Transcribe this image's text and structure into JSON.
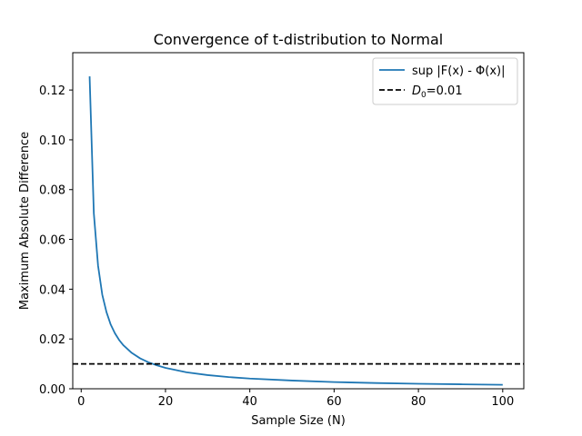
{
  "chart_data": {
    "type": "line",
    "title": "Convergence of t-distribution to Normal",
    "xlabel": "Sample Size (N)",
    "ylabel": "Maximum Absolute Difference",
    "xlim": [
      -2,
      105
    ],
    "ylim": [
      0,
      0.135
    ],
    "xticks": [
      0,
      20,
      40,
      60,
      80,
      100
    ],
    "yticks": [
      0.0,
      0.02,
      0.04,
      0.06,
      0.08,
      0.1,
      0.12
    ],
    "xtick_labels": [
      "0",
      "20",
      "40",
      "60",
      "80",
      "100"
    ],
    "ytick_labels": [
      "0.00",
      "0.02",
      "0.04",
      "0.06",
      "0.08",
      "0.10",
      "0.12"
    ],
    "grid": false,
    "legend_position": "top-right",
    "series": [
      {
        "name": "sup |F(x) - Φ(x)|",
        "style": "solid",
        "color": "#1f77b4",
        "x": [
          2,
          3,
          4,
          5,
          6,
          7,
          8,
          9,
          10,
          12,
          14,
          16,
          18,
          20,
          25,
          30,
          35,
          40,
          50,
          60,
          70,
          80,
          90,
          100
        ],
        "y": [
          0.1255,
          0.0705,
          0.0495,
          0.0378,
          0.0308,
          0.0258,
          0.0223,
          0.0196,
          0.0175,
          0.0144,
          0.0122,
          0.0106,
          0.0094,
          0.0084,
          0.0066,
          0.0055,
          0.0047,
          0.0041,
          0.0033,
          0.0027,
          0.0023,
          0.002,
          0.0018,
          0.0016
        ]
      },
      {
        "name": "D0=0.01",
        "style": "dashed",
        "color": "#000000",
        "y_constant": 0.01
      }
    ]
  },
  "legend": {
    "sup_label": "sup |F(x) - Φ(x)|",
    "d0_prefix": "D",
    "d0_subscript": "0",
    "d0_suffix": "=0.01"
  }
}
